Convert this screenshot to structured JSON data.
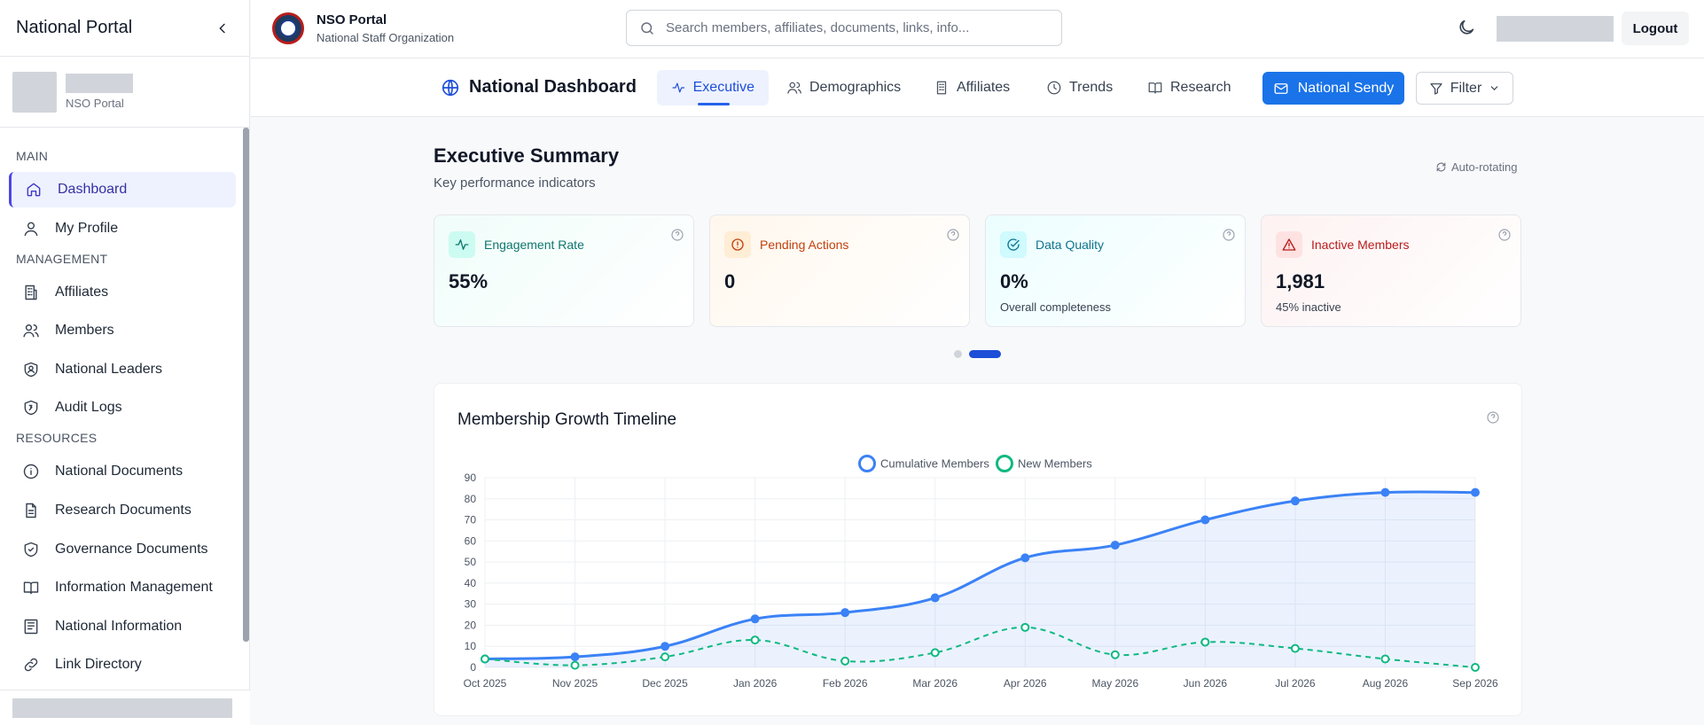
{
  "sidebar": {
    "title": "National Portal",
    "user_sub": "NSO Portal",
    "sections": {
      "main": "MAIN",
      "management": "MANAGEMENT",
      "resources": "RESOURCES"
    },
    "items": {
      "dashboard": "Dashboard",
      "my_profile": "My Profile",
      "affiliates": "Affiliates",
      "members": "Members",
      "national_leaders": "National Leaders",
      "audit_logs": "Audit Logs",
      "national_documents": "National Documents",
      "research_documents": "Research Documents",
      "governance_documents": "Governance Documents",
      "information_management": "Information Management",
      "national_information": "National Information",
      "link_directory": "Link Directory"
    }
  },
  "header": {
    "brand_title": "NSO Portal",
    "brand_sub": "National Staff Organization",
    "search_placeholder": "Search members, affiliates, documents, links, info...",
    "logout": "Logout"
  },
  "dashbar": {
    "title": "National Dashboard",
    "tabs": {
      "executive": "Executive",
      "demographics": "Demographics",
      "affiliates": "Affiliates",
      "trends": "Trends",
      "research": "Research"
    },
    "sendy": "National Sendy",
    "filter": "Filter"
  },
  "summary": {
    "title": "Executive Summary",
    "subtitle": "Key performance indicators",
    "auto_rotating": "Auto-rotating"
  },
  "kpis": {
    "engagement": {
      "label": "Engagement Rate",
      "value": "55%",
      "note": "",
      "color": "#0f766e"
    },
    "pending": {
      "label": "Pending Actions",
      "value": "0",
      "note": "",
      "color": "#c2410c"
    },
    "quality": {
      "label": "Data Quality",
      "value": "0%",
      "note": "Overall completeness",
      "color": "#0e7490"
    },
    "inactive": {
      "label": "Inactive Members",
      "value": "1,981",
      "note": "45% inactive",
      "color": "#b91c1c"
    }
  },
  "carousel": {
    "pages": 2,
    "active": 2
  },
  "chart_title": "Membership Growth Timeline",
  "chart_data": {
    "type": "line",
    "title": "Membership Growth Timeline",
    "categories": [
      "Oct 2025",
      "Nov 2025",
      "Dec 2025",
      "Jan 2026",
      "Feb 2026",
      "Mar 2026",
      "Apr 2026",
      "May 2026",
      "Jun 2026",
      "Jul 2026",
      "Aug 2026",
      "Sep 2026"
    ],
    "series": [
      {
        "name": "Cumulative Members",
        "values": [
          4,
          5,
          10,
          23,
          26,
          33,
          52,
          58,
          70,
          79,
          83,
          83
        ],
        "color": "#3b82f6",
        "style": "solid",
        "fill": true
      },
      {
        "name": "New Members",
        "values": [
          4,
          1,
          5,
          13,
          3,
          7,
          19,
          6,
          12,
          9,
          4,
          0
        ],
        "color": "#10b981",
        "style": "dashed",
        "fill": false
      }
    ],
    "yticks": [
      0,
      10,
      20,
      30,
      40,
      50,
      60,
      70,
      80,
      90
    ],
    "ylim": [
      0,
      90
    ],
    "grid": true,
    "legend": "top-center"
  }
}
